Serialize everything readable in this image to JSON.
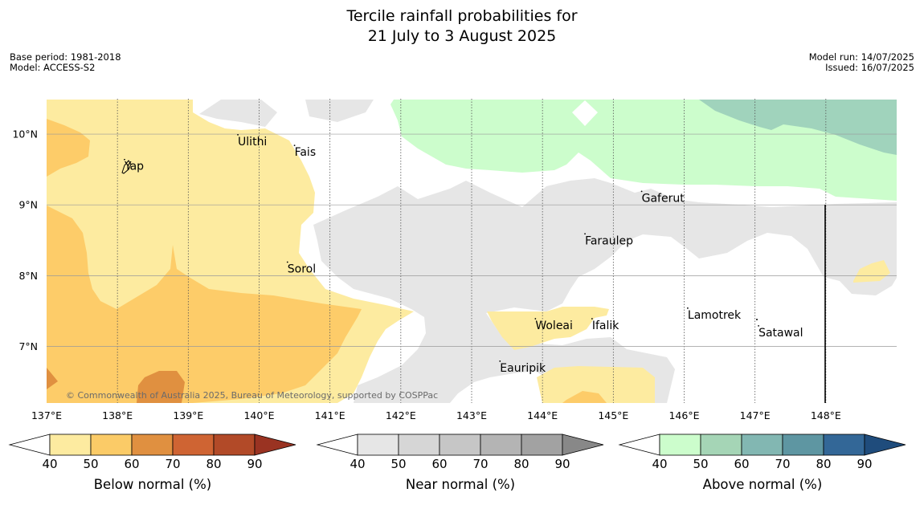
{
  "title": {
    "line1": "Tercile rainfall probabilities for",
    "line2": "21 July to 3 August 2025"
  },
  "meta": {
    "base_period": "Base period: 1981-2018",
    "model": "Model: ACCESS-S2",
    "model_run": "Model run: 14/07/2025",
    "issued": "Issued: 16/07/2025"
  },
  "copyright": "© Commonwealth of Australia 2025, Bureau of Meteorology, supported by COSPPac",
  "map": {
    "lon_range": [
      137,
      149
    ],
    "lat_range": [
      6.2,
      10.5
    ],
    "lon_ticks": [
      "137°E",
      "138°E",
      "139°E",
      "140°E",
      "141°E",
      "142°E",
      "143°E",
      "144°E",
      "145°E",
      "146°E",
      "147°E",
      "148°E"
    ],
    "lat_ticks": [
      "10°N",
      "9°N",
      "8°N",
      "7°N"
    ],
    "places": [
      {
        "name": "Yap",
        "lon": 138.1,
        "lat": 9.55
      },
      {
        "name": "Ulithi",
        "lon": 139.7,
        "lat": 9.9
      },
      {
        "name": "Fais",
        "lon": 140.5,
        "lat": 9.75
      },
      {
        "name": "Sorol",
        "lon": 140.4,
        "lat": 8.1
      },
      {
        "name": "Gaferut",
        "lon": 145.4,
        "lat": 9.1
      },
      {
        "name": "Faraulep",
        "lon": 144.6,
        "lat": 8.5
      },
      {
        "name": "Woleai",
        "lon": 143.9,
        "lat": 7.3
      },
      {
        "name": "Ifalik",
        "lon": 144.7,
        "lat": 7.3
      },
      {
        "name": "Eauripik",
        "lon": 143.4,
        "lat": 6.7
      },
      {
        "name": "Lamotrek",
        "lon": 146.05,
        "lat": 7.45
      },
      {
        "name": "Satawal",
        "lon": 147.05,
        "lat": 7.2
      }
    ]
  },
  "colorbars": [
    {
      "label": "Below normal (%)",
      "ticks": [
        "40",
        "50",
        "60",
        "70",
        "80",
        "90"
      ],
      "colors": [
        "#fdeba0",
        "#fbcb67",
        "#e09040",
        "#cf6433",
        "#b24a28",
        "#9a3322"
      ]
    },
    {
      "label": "Near normal (%)",
      "ticks": [
        "40",
        "50",
        "60",
        "70",
        "80",
        "90"
      ],
      "colors": [
        "#e6e6e6",
        "#d6d6d6",
        "#c6c6c6",
        "#b4b4b4",
        "#a2a2a2",
        "#888888"
      ]
    },
    {
      "label": "Above normal (%)",
      "ticks": [
        "40",
        "50",
        "60",
        "70",
        "80",
        "90"
      ],
      "colors": [
        "#ccfdcc",
        "#a5d5b6",
        "#82b7b2",
        "#5e96a2",
        "#336797",
        "#1f4c7c"
      ]
    }
  ]
}
